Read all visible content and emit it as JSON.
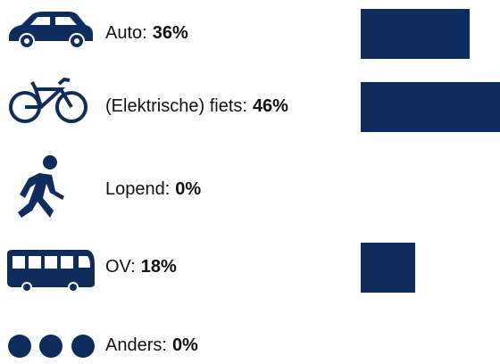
{
  "chart_data": {
    "type": "bar",
    "orientation": "horizontal",
    "categories": [
      "Auto:",
      "(Elektrische) fiets:",
      "Lopend:",
      "OV:",
      "Anders:"
    ],
    "values": [
      36,
      46,
      0,
      18,
      0
    ],
    "value_labels": [
      "36%",
      "46%",
      "0%",
      "18%",
      "0%"
    ],
    "color": "#0f2d5c"
  }
}
